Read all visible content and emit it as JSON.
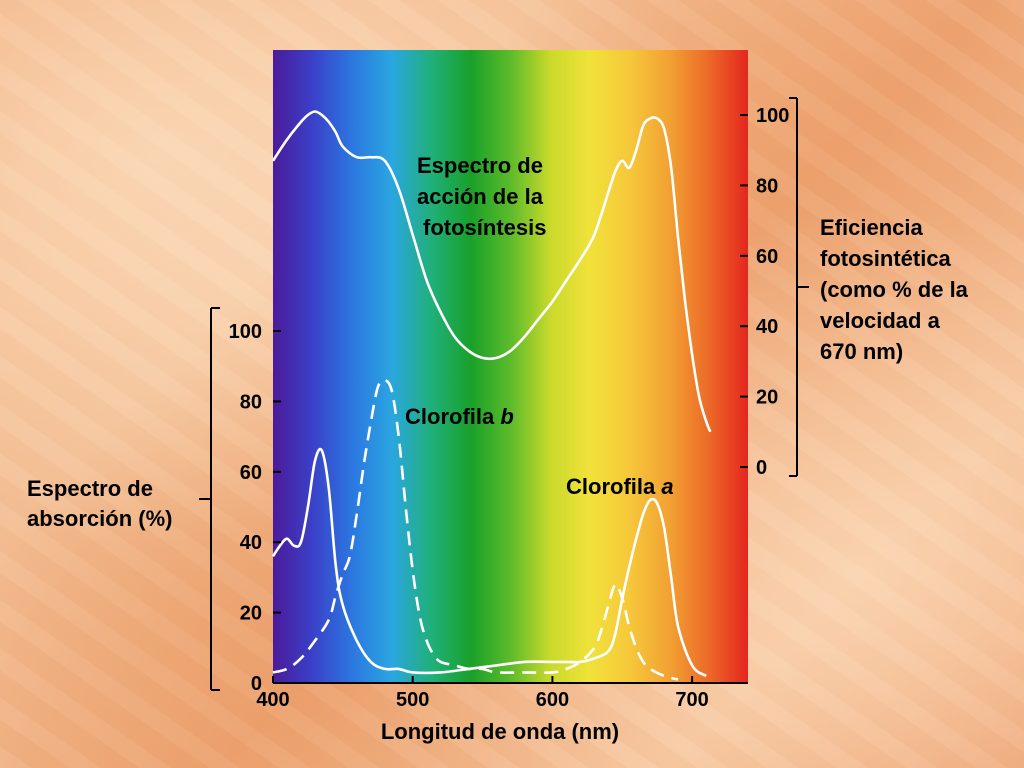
{
  "colors": {
    "spectrum_stops": [
      "#4b1b9a",
      "#3a40c8",
      "#2b77e0",
      "#2aa6e0",
      "#20b07a",
      "#19a02a",
      "#5cbb2a",
      "#c9d92b",
      "#f1e23a",
      "#f6c83a",
      "#f2a233",
      "#ec6a28",
      "#e4261f"
    ],
    "curve": "#ffffff",
    "axis": "#000000"
  },
  "chart_data": [
    {
      "type": "line",
      "title": "Espectro de acción de la fotosíntesis",
      "xlabel": "Longitud de onda (nm)",
      "ylabel": [
        "Eficiencia",
        "fotosintética",
        "(como % de la",
        "velocidad a",
        "670 nm)"
      ],
      "xlim": [
        400,
        740
      ],
      "ylim": [
        0,
        100
      ],
      "yticks": [
        "0",
        "20",
        "40",
        "60",
        "80",
        "100"
      ],
      "axis_side": "right",
      "series": [
        {
          "style": "solid",
          "x": [
            400,
            410,
            420,
            425,
            430,
            435,
            440,
            445,
            450,
            460,
            470,
            480,
            490,
            500,
            510,
            520,
            530,
            540,
            550,
            560,
            570,
            580,
            590,
            600,
            610,
            620,
            630,
            640,
            645,
            650,
            655,
            660,
            665,
            670,
            675,
            680,
            685,
            690,
            695,
            700,
            705,
            710,
            713
          ],
          "y": [
            87,
            93,
            98,
            100,
            101,
            100,
            98,
            95,
            91,
            88,
            88,
            87,
            79,
            66,
            53,
            44,
            37,
            33,
            31,
            31,
            33,
            37,
            42,
            47,
            53,
            59,
            66,
            78,
            84,
            87,
            85,
            90,
            97,
            99,
            99,
            96,
            85,
            65,
            47,
            32,
            20,
            13,
            10
          ]
        }
      ]
    },
    {
      "type": "line",
      "ylabel": [
        "Espectro de",
        "absorción (%)"
      ],
      "xlim": [
        400,
        740
      ],
      "ylim": [
        0,
        100
      ],
      "xticks": [
        "400",
        "500",
        "600",
        "700"
      ],
      "yticks": [
        "0",
        "20",
        "40",
        "60",
        "80",
        "100"
      ],
      "axis_side": "left",
      "series": [
        {
          "name": "Clorofila a",
          "style": "solid",
          "x": [
            400,
            405,
            410,
            415,
            420,
            425,
            430,
            435,
            440,
            445,
            450,
            460,
            470,
            480,
            490,
            500,
            520,
            540,
            560,
            580,
            600,
            610,
            620,
            630,
            640,
            645,
            650,
            655,
            660,
            665,
            670,
            675,
            680,
            685,
            690,
            700,
            710
          ],
          "y": [
            36,
            39,
            41,
            39,
            40,
            50,
            63,
            66,
            55,
            33,
            22,
            12,
            6,
            4,
            4,
            3,
            3,
            4,
            5,
            6,
            6,
            6,
            6,
            7,
            9,
            14,
            24,
            33,
            41,
            48,
            52,
            51,
            44,
            30,
            16,
            5,
            2
          ],
          "label_x": 590
        },
        {
          "name": "Clorofila b",
          "style": "dashed",
          "x": [
            400,
            410,
            420,
            430,
            440,
            445,
            450,
            455,
            460,
            465,
            470,
            475,
            480,
            485,
            490,
            495,
            500,
            505,
            510,
            515,
            520,
            530,
            540,
            550,
            560,
            580,
            600,
            610,
            620,
            630,
            635,
            640,
            645,
            650,
            655,
            660,
            665,
            670,
            680,
            690
          ],
          "y": [
            3,
            4,
            7,
            12,
            18,
            25,
            31,
            36,
            48,
            62,
            74,
            84,
            86,
            83,
            70,
            50,
            32,
            19,
            12,
            8,
            6,
            5,
            4,
            4,
            3,
            3,
            3,
            4,
            6,
            10,
            15,
            22,
            28,
            24,
            16,
            10,
            6,
            4,
            2,
            1
          ],
          "label_x": 500
        }
      ]
    }
  ]
}
